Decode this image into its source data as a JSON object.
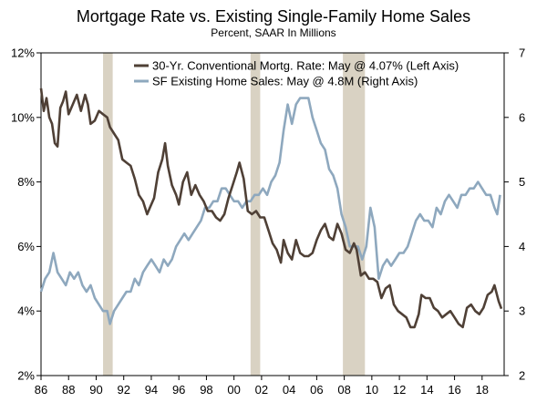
{
  "chart_data": {
    "type": "line",
    "title": "Mortgage Rate vs. Existing Single-Family Home Sales",
    "subtitle": "Percent, SAAR In Millions",
    "x_tick_labels": [
      "86",
      "88",
      "90",
      "92",
      "94",
      "96",
      "98",
      "00",
      "02",
      "04",
      "06",
      "08",
      "10",
      "12",
      "14",
      "16",
      "18"
    ],
    "x_ticks": [
      1986,
      1988,
      1990,
      1992,
      1994,
      1996,
      1998,
      2000,
      2002,
      2004,
      2006,
      2008,
      2010,
      2012,
      2014,
      2016,
      2018
    ],
    "xlim": [
      1986,
      2019.6
    ],
    "left_axis": {
      "ylim": [
        2,
        12
      ],
      "ticks": [
        2,
        4,
        6,
        8,
        10,
        12
      ],
      "tick_labels": [
        "2%",
        "4%",
        "6%",
        "8%",
        "10%",
        "12%"
      ]
    },
    "right_axis": {
      "ylim": [
        2,
        7
      ],
      "ticks": [
        2,
        3,
        4,
        5,
        6,
        7
      ],
      "tick_labels": [
        "2",
        "3",
        "4",
        "5",
        "6",
        "7"
      ]
    },
    "recessions": [
      [
        1990.5,
        1991.2
      ],
      [
        2001.2,
        2001.9
      ],
      [
        2007.9,
        2009.5
      ]
    ],
    "legend": {
      "position": "top-right"
    },
    "colors": {
      "mortgage": "#4f4036",
      "sales": "#8ea8be",
      "recession": "#d9d2c3",
      "axis": "#000000"
    },
    "series": [
      {
        "name": "30-Yr. Conventional Mortg. Rate: May @ 4.07% (Left Axis)",
        "axis": "left",
        "x": [
          1986.0,
          1986.2,
          1986.4,
          1986.6,
          1986.8,
          1987.0,
          1987.2,
          1987.4,
          1987.6,
          1987.8,
          1988.0,
          1988.3,
          1988.6,
          1988.9,
          1989.2,
          1989.4,
          1989.6,
          1989.9,
          1990.2,
          1990.5,
          1990.8,
          1991.0,
          1991.3,
          1991.6,
          1991.9,
          1992.2,
          1992.5,
          1992.8,
          1993.1,
          1993.4,
          1993.7,
          1993.9,
          1994.2,
          1994.5,
          1994.8,
          1995.0,
          1995.2,
          1995.5,
          1995.8,
          1996.0,
          1996.3,
          1996.6,
          1996.9,
          1997.2,
          1997.5,
          1997.8,
          1998.1,
          1998.4,
          1998.7,
          1999.0,
          1999.3,
          1999.6,
          1999.9,
          2000.2,
          2000.4,
          2000.7,
          2001.0,
          2001.3,
          2001.6,
          2001.9,
          2002.2,
          2002.5,
          2002.8,
          2003.1,
          2003.4,
          2003.6,
          2003.9,
          2004.2,
          2004.5,
          2004.8,
          2005.1,
          2005.4,
          2005.7,
          2006.0,
          2006.3,
          2006.6,
          2006.9,
          2007.2,
          2007.5,
          2007.8,
          2008.1,
          2008.4,
          2008.7,
          2008.9,
          2009.2,
          2009.5,
          2009.8,
          2010.1,
          2010.4,
          2010.7,
          2011.0,
          2011.3,
          2011.6,
          2011.9,
          2012.2,
          2012.5,
          2012.8,
          2013.1,
          2013.4,
          2013.6,
          2013.9,
          2014.2,
          2014.5,
          2014.8,
          2015.1,
          2015.4,
          2015.7,
          2016.0,
          2016.3,
          2016.6,
          2016.9,
          2017.2,
          2017.5,
          2017.8,
          2018.1,
          2018.4,
          2018.7,
          2018.9,
          2019.2,
          2019.4
        ],
        "y": [
          10.9,
          10.2,
          10.6,
          10.0,
          9.8,
          9.2,
          9.1,
          10.3,
          10.5,
          10.8,
          10.1,
          10.4,
          10.7,
          10.2,
          10.7,
          10.4,
          9.8,
          9.9,
          10.2,
          10.1,
          10.0,
          9.7,
          9.5,
          9.3,
          8.7,
          8.6,
          8.5,
          8.1,
          7.6,
          7.4,
          7.0,
          7.2,
          7.5,
          8.3,
          8.7,
          9.2,
          8.5,
          7.9,
          7.6,
          7.3,
          8.0,
          8.3,
          7.6,
          7.9,
          7.6,
          7.4,
          7.1,
          7.1,
          6.9,
          6.8,
          7.0,
          7.5,
          7.9,
          8.3,
          8.6,
          8.1,
          7.1,
          7.0,
          7.1,
          6.9,
          6.9,
          6.5,
          6.1,
          5.9,
          5.5,
          6.2,
          5.8,
          5.6,
          6.2,
          5.8,
          5.7,
          5.7,
          5.8,
          6.2,
          6.5,
          6.7,
          6.3,
          6.2,
          6.7,
          6.4,
          5.9,
          5.8,
          6.1,
          5.9,
          5.1,
          5.2,
          5.0,
          5.0,
          4.9,
          4.4,
          4.7,
          4.8,
          4.2,
          4.0,
          3.9,
          3.8,
          3.5,
          3.5,
          3.9,
          4.5,
          4.4,
          4.4,
          4.1,
          4.0,
          3.8,
          3.9,
          4.0,
          3.8,
          3.6,
          3.5,
          4.1,
          4.2,
          4.0,
          3.9,
          4.1,
          4.5,
          4.6,
          4.8,
          4.3,
          4.07
        ]
      },
      {
        "name": "SF Existing Home Sales: May @ 4.8M (Right Axis)",
        "axis": "right",
        "x": [
          1986.0,
          1986.3,
          1986.6,
          1986.9,
          1987.2,
          1987.5,
          1987.8,
          1988.1,
          1988.4,
          1988.7,
          1989.0,
          1989.3,
          1989.6,
          1989.9,
          1990.2,
          1990.5,
          1990.8,
          1991.0,
          1991.3,
          1991.6,
          1991.9,
          1992.2,
          1992.5,
          1992.8,
          1993.1,
          1993.4,
          1993.7,
          1994.0,
          1994.3,
          1994.6,
          1994.9,
          1995.2,
          1995.5,
          1995.8,
          1996.1,
          1996.4,
          1996.7,
          1997.0,
          1997.3,
          1997.6,
          1997.9,
          1998.2,
          1998.5,
          1998.8,
          1999.1,
          1999.4,
          1999.7,
          2000.0,
          2000.3,
          2000.6,
          2000.9,
          2001.2,
          2001.5,
          2001.8,
          2002.1,
          2002.4,
          2002.7,
          2003.0,
          2003.3,
          2003.6,
          2003.9,
          2004.2,
          2004.5,
          2004.8,
          2005.1,
          2005.4,
          2005.7,
          2006.0,
          2006.3,
          2006.6,
          2006.9,
          2007.2,
          2007.5,
          2007.8,
          2008.1,
          2008.4,
          2008.7,
          2009.0,
          2009.3,
          2009.6,
          2009.9,
          2010.2,
          2010.5,
          2010.8,
          2011.1,
          2011.4,
          2011.7,
          2012.0,
          2012.3,
          2012.6,
          2012.9,
          2013.2,
          2013.5,
          2013.8,
          2014.1,
          2014.4,
          2014.7,
          2015.0,
          2015.3,
          2015.6,
          2015.9,
          2016.2,
          2016.5,
          2016.8,
          2017.1,
          2017.4,
          2017.7,
          2018.0,
          2018.3,
          2018.6,
          2018.9,
          2019.1,
          2019.3
        ],
        "y": [
          3.3,
          3.5,
          3.6,
          3.9,
          3.6,
          3.5,
          3.4,
          3.6,
          3.5,
          3.6,
          3.4,
          3.3,
          3.4,
          3.2,
          3.1,
          3.0,
          3.0,
          2.8,
          3.0,
          3.1,
          3.2,
          3.3,
          3.3,
          3.5,
          3.4,
          3.6,
          3.7,
          3.8,
          3.7,
          3.6,
          3.8,
          3.7,
          3.8,
          4.0,
          4.1,
          4.2,
          4.1,
          4.2,
          4.3,
          4.4,
          4.6,
          4.6,
          4.7,
          4.7,
          4.9,
          4.9,
          4.8,
          4.7,
          4.7,
          4.6,
          4.7,
          4.7,
          4.8,
          4.8,
          4.9,
          4.8,
          5.0,
          5.1,
          5.3,
          5.8,
          6.2,
          5.9,
          6.2,
          6.3,
          6.3,
          6.3,
          6.0,
          5.8,
          5.6,
          5.5,
          5.2,
          5.1,
          4.9,
          4.5,
          4.3,
          4.0,
          4.0,
          4.0,
          3.8,
          4.0,
          4.6,
          4.3,
          3.5,
          3.7,
          3.8,
          3.7,
          3.8,
          3.9,
          3.9,
          4.0,
          4.2,
          4.4,
          4.5,
          4.4,
          4.4,
          4.3,
          4.6,
          4.5,
          4.7,
          4.8,
          4.7,
          4.6,
          4.8,
          4.8,
          4.9,
          4.9,
          5.0,
          4.9,
          4.8,
          4.8,
          4.6,
          4.5,
          4.8
        ]
      }
    ]
  }
}
